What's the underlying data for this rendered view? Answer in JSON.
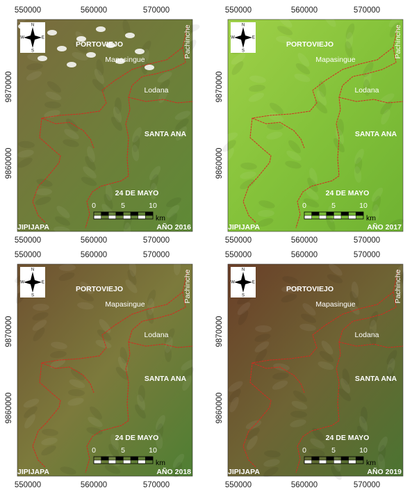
{
  "x_ticks": [
    "550000",
    "560000",
    "570000"
  ],
  "y_ticks": [
    "9870000",
    "9860000"
  ],
  "compass": {
    "n": "N",
    "s": "S",
    "e": "E",
    "w": "W"
  },
  "places": {
    "portoviejo": "PORTOVIEJO",
    "mapasingue": "Mapasingue",
    "lodana": "Lodana",
    "santa_ana": "SANTA ANA",
    "24_de_mayo": "24 DE MAYO",
    "jipijapa": "JIPIJAPA",
    "pachinche": "Pachinche"
  },
  "scale": {
    "zero": "0",
    "five": "5",
    "ten": "10",
    "unit": "km"
  },
  "panels": [
    {
      "year": "AÑO 2016"
    },
    {
      "year": "AÑO 2017"
    },
    {
      "year": "AÑO 2018"
    },
    {
      "year": "AÑO 2019"
    }
  ]
}
